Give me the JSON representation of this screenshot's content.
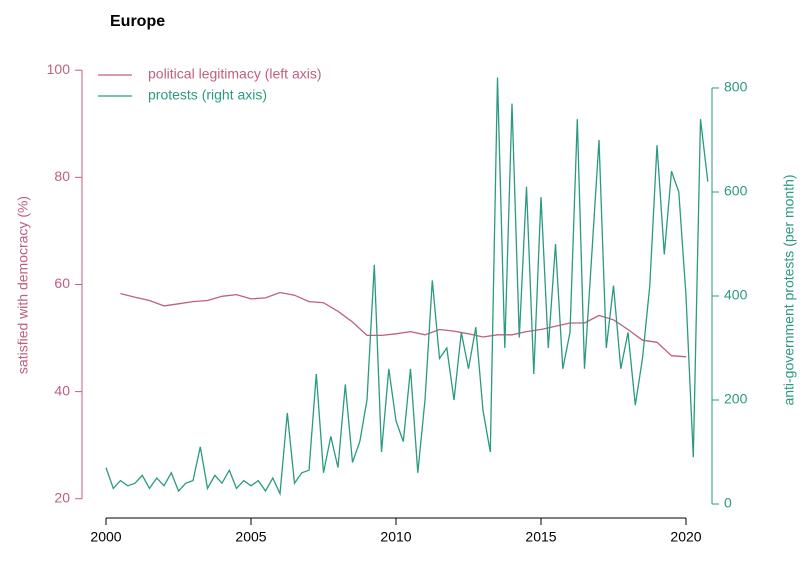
{
  "chart_data": {
    "type": "line",
    "title": "Europe",
    "ylabel": "satisfied with democracy (%)",
    "y2label": "anti-government protests (per month)",
    "xlim": [
      1999.6,
      2021.0
    ],
    "xticks": [
      2000,
      2005,
      2010,
      2015,
      2020
    ],
    "ylim": [
      17.9,
      101.9
    ],
    "yticks": [
      20,
      40,
      60,
      80,
      100
    ],
    "y2lim": [
      -11.5,
      853.8
    ],
    "y2ticks": [
      0,
      200,
      400,
      600,
      800
    ],
    "legend": "top-left",
    "series": [
      {
        "name": "political legitimacy (left axis)",
        "color": "#c0607a",
        "axis": "y",
        "x": [
          2000.5,
          2001,
          2001.5,
          2002,
          2002.5,
          2003,
          2003.5,
          2004,
          2004.5,
          2005,
          2005.5,
          2006,
          2006.5,
          2007,
          2007.5,
          2008,
          2008.5,
          2009,
          2009.5,
          2010,
          2010.5,
          2011,
          2011.5,
          2012,
          2012.5,
          2013,
          2013.5,
          2014,
          2014.5,
          2015,
          2015.5,
          2016,
          2016.5,
          2017,
          2017.5,
          2018,
          2018.5,
          2019,
          2019.5,
          2020
        ],
        "values": [
          58.3,
          57.6,
          57,
          56,
          56.4,
          56.8,
          57,
          57.8,
          58.1,
          57.3,
          57.5,
          58.5,
          58,
          56.8,
          56.6,
          55,
          53,
          50.5,
          50.5,
          50.8,
          51.2,
          50.6,
          51.6,
          51.3,
          50.8,
          50.2,
          50.6,
          50.6,
          51.2,
          51.6,
          52.2,
          52.8,
          52.8,
          54.2,
          53.4,
          51.6,
          49.6,
          49.2,
          46.7,
          46.5
        ]
      },
      {
        "name": "protests (right axis)",
        "color": "#2a9a80",
        "axis": "y2",
        "x": [
          2000,
          2000.25,
          2000.5,
          2000.75,
          2001,
          2001.25,
          2001.5,
          2001.75,
          2002,
          2002.25,
          2002.5,
          2002.75,
          2003,
          2003.25,
          2003.5,
          2003.75,
          2004,
          2004.25,
          2004.5,
          2004.75,
          2005,
          2005.25,
          2005.5,
          2005.75,
          2006,
          2006.25,
          2006.5,
          2006.75,
          2007,
          2007.25,
          2007.5,
          2007.75,
          2008,
          2008.25,
          2008.5,
          2008.75,
          2009,
          2009.25,
          2009.5,
          2009.75,
          2010,
          2010.25,
          2010.5,
          2010.75,
          2011,
          2011.25,
          2011.5,
          2011.75,
          2012,
          2012.25,
          2012.5,
          2012.75,
          2013,
          2013.25,
          2013.5,
          2013.75,
          2014,
          2014.25,
          2014.5,
          2014.75,
          2015,
          2015.25,
          2015.5,
          2015.75,
          2016,
          2016.25,
          2016.5,
          2016.75,
          2017,
          2017.25,
          2017.5,
          2017.75,
          2018,
          2018.25,
          2018.5,
          2018.75,
          2019,
          2019.25,
          2019.5,
          2019.75,
          2020,
          2020.25,
          2020.5,
          2020.75
        ],
        "values": [
          70,
          30,
          45,
          35,
          40,
          55,
          30,
          50,
          35,
          60,
          25,
          40,
          45,
          110,
          30,
          55,
          40,
          65,
          30,
          45,
          35,
          45,
          25,
          50,
          20,
          175,
          40,
          60,
          65,
          250,
          60,
          130,
          70,
          230,
          80,
          120,
          200,
          460,
          100,
          260,
          160,
          120,
          260,
          60,
          200,
          430,
          280,
          300,
          200,
          330,
          260,
          340,
          180,
          100,
          820,
          300,
          770,
          320,
          610,
          250,
          590,
          300,
          500,
          260,
          330,
          740,
          260,
          480,
          700,
          300,
          420,
          260,
          330,
          190,
          280,
          420,
          690,
          480,
          640,
          600,
          400,
          90,
          740,
          620
        ]
      }
    ]
  }
}
